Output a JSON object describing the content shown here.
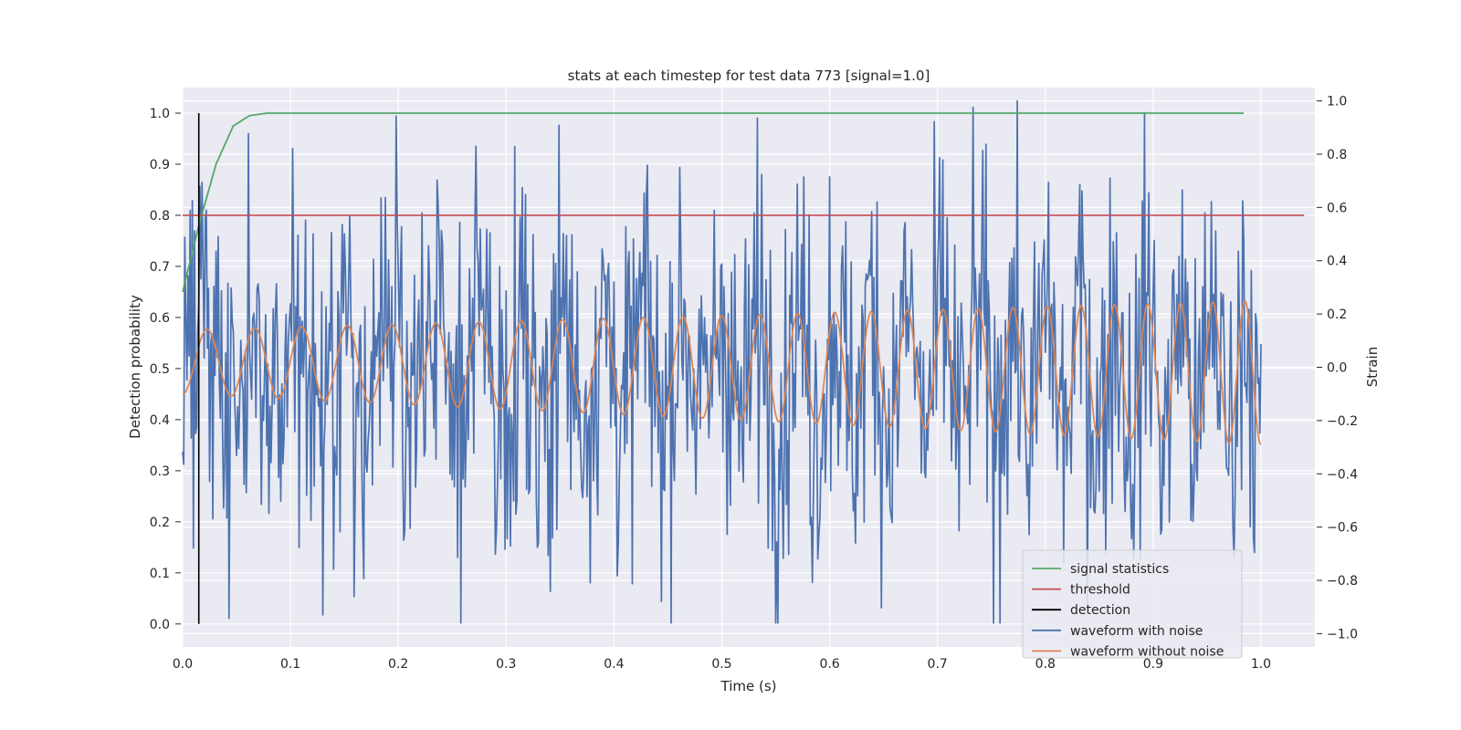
{
  "chart_data": {
    "type": "line",
    "title": "stats at each timestep for test data 773 [signal=1.0]",
    "xlabel": "Time (s)",
    "ylabel_left": "Detection probability",
    "ylabel_right": "Strain",
    "xlim": [
      0.0,
      1.05
    ],
    "ylim_left": [
      -0.045,
      1.05
    ],
    "ylim_right": [
      -1.05,
      1.05
    ],
    "grid": true,
    "legend_position": "lower-right",
    "x_ticks": [
      "0.0",
      "0.1",
      "0.2",
      "0.3",
      "0.4",
      "0.5",
      "0.6",
      "0.7",
      "0.8",
      "0.9",
      "1.0"
    ],
    "y_left_ticks": [
      "0.0",
      "0.1",
      "0.2",
      "0.3",
      "0.4",
      "0.5",
      "0.6",
      "0.7",
      "0.8",
      "0.9",
      "1.0"
    ],
    "y_right_ticks": [
      "−1.0",
      "−0.8",
      "−0.6",
      "−0.4",
      "−0.2",
      "0.0",
      "0.2",
      "0.4",
      "0.6",
      "0.8",
      "1.0"
    ],
    "series": [
      {
        "name": "signal statistics",
        "color": "#55a868",
        "axis": "left",
        "x": [
          0.0,
          0.015,
          0.031,
          0.047,
          0.062,
          0.078,
          0.1,
          0.2,
          0.4,
          0.6,
          0.8,
          0.984
        ],
        "y": [
          0.65,
          0.78,
          0.9,
          0.975,
          0.995,
          1.0,
          1.0,
          1.0,
          1.0,
          1.0,
          1.0,
          1.0
        ]
      },
      {
        "name": "threshold",
        "color": "#c44e52",
        "axis": "left",
        "x": [
          0.0,
          1.04
        ],
        "y": [
          0.8,
          0.8
        ]
      },
      {
        "name": "detection",
        "color": "#000000",
        "axis": "left",
        "x": [
          0.015,
          0.015
        ],
        "y": [
          0.0,
          1.0
        ]
      },
      {
        "name": "waveform with noise",
        "color": "#4c72b0",
        "axis": "right",
        "noise_amplitude_approx": 0.35,
        "min": -0.96,
        "max": 1.0
      },
      {
        "name": "waveform without noise",
        "color": "#dd8452",
        "axis": "right",
        "start_cycles_per_s": 22,
        "end_cycles_per_s": 34,
        "start_amplitude": 0.12,
        "end_amplitude": 0.27,
        "start_offset": 0.02,
        "end_offset": -0.02
      }
    ]
  }
}
